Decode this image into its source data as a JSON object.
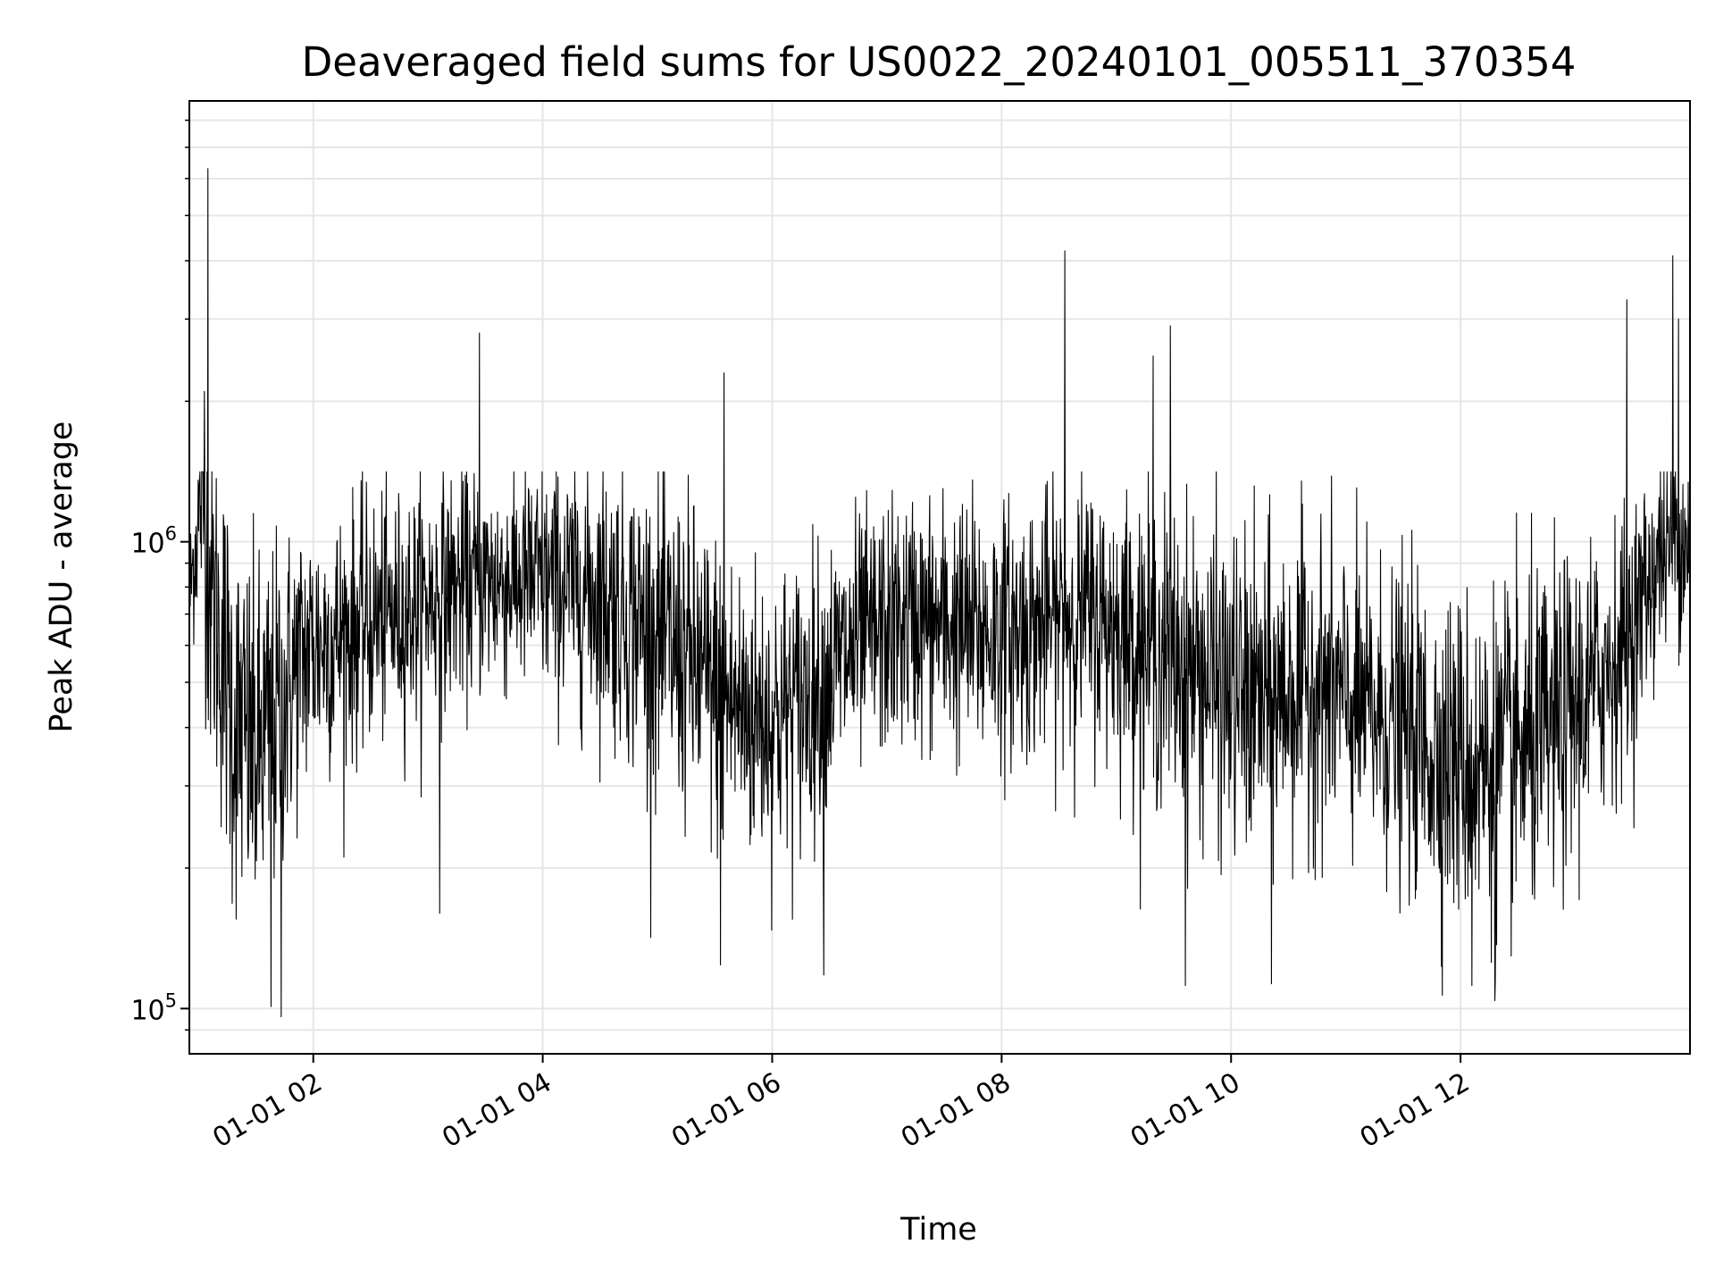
{
  "chart_data": {
    "type": "line",
    "title": "Deaveraged field sums for US0022_20240101_005511_370354",
    "xlabel": "Time",
    "ylabel": "Peak ADU - average",
    "x_ticks": [
      "01-01 02",
      "01-01 04",
      "01-01 06",
      "01-01 08",
      "01-01 10",
      "01-01 12"
    ],
    "x_tick_hours": [
      2,
      4,
      6,
      8,
      10,
      12
    ],
    "xlim_hours": [
      0.92,
      14.0
    ],
    "y_scale": "log",
    "ylim": [
      80000,
      8800000
    ],
    "y_major_ticks": [
      {
        "value": 100000,
        "base": "10",
        "exp": "5"
      },
      {
        "value": 1000000,
        "base": "10",
        "exp": "6"
      }
    ],
    "y_minor_ticks": [
      90000,
      200000,
      300000,
      400000,
      500000,
      600000,
      700000,
      800000,
      900000,
      2000000,
      3000000,
      4000000,
      5000000,
      6000000,
      7000000,
      8000000
    ],
    "grid": true,
    "line_color": "#000000",
    "series": [
      {
        "time_hours": [
          0.92,
          1.02,
          1.1,
          1.2,
          1.3,
          1.4,
          1.5,
          1.6,
          1.7,
          1.8,
          1.9,
          2.0,
          2.25,
          2.5,
          2.75,
          3.0,
          3.25,
          3.5,
          3.75,
          4.0,
          4.25,
          4.5,
          4.75,
          5.0,
          5.25,
          5.5,
          5.75,
          6.0,
          6.25,
          6.5,
          6.75,
          7.0,
          7.25,
          7.5,
          7.75,
          8.0,
          8.25,
          8.5,
          8.75,
          9.0,
          9.25,
          9.5,
          9.75,
          10.0,
          10.25,
          10.5,
          10.75,
          11.0,
          11.25,
          11.5,
          11.75,
          12.0,
          12.25,
          12.5,
          12.75,
          13.0,
          13.25,
          13.5,
          13.75,
          14.0
        ],
        "median": [
          750000,
          1200000,
          800000,
          600000,
          420000,
          380000,
          350000,
          380000,
          430000,
          500000,
          560000,
          600000,
          630000,
          680000,
          700000,
          750000,
          800000,
          820000,
          830000,
          820000,
          800000,
          780000,
          700000,
          620000,
          560000,
          480000,
          430000,
          420000,
          450000,
          520000,
          600000,
          650000,
          680000,
          660000,
          640000,
          640000,
          650000,
          690000,
          700000,
          660000,
          600000,
          560000,
          520000,
          470000,
          450000,
          480000,
          500000,
          450000,
          420000,
          400000,
          360000,
          340000,
          330000,
          350000,
          380000,
          440000,
          520000,
          650000,
          950000,
          1050000
        ],
        "noise_decades": [
          0.14,
          0.2,
          0.34,
          0.36,
          0.37,
          0.37,
          0.37,
          0.36,
          0.34,
          0.3,
          0.28,
          0.26,
          0.25,
          0.24,
          0.23,
          0.22,
          0.22,
          0.22,
          0.22,
          0.23,
          0.24,
          0.26,
          0.28,
          0.3,
          0.31,
          0.31,
          0.3,
          0.29,
          0.28,
          0.26,
          0.25,
          0.24,
          0.24,
          0.25,
          0.26,
          0.25,
          0.25,
          0.25,
          0.25,
          0.26,
          0.28,
          0.29,
          0.3,
          0.31,
          0.31,
          0.3,
          0.29,
          0.29,
          0.29,
          0.3,
          0.31,
          0.32,
          0.33,
          0.33,
          0.32,
          0.3,
          0.27,
          0.24,
          0.2,
          0.18
        ],
        "spikes": [
          {
            "t": 1.08,
            "v": 6300000
          },
          {
            "t": 1.05,
            "v": 2100000
          },
          {
            "t": 3.45,
            "v": 2800000
          },
          {
            "t": 5.58,
            "v": 2300000
          },
          {
            "t": 8.55,
            "v": 4200000
          },
          {
            "t": 9.32,
            "v": 2500000
          },
          {
            "t": 9.47,
            "v": 2900000
          },
          {
            "t": 13.45,
            "v": 3300000
          },
          {
            "t": 13.85,
            "v": 4100000
          },
          {
            "t": 13.9,
            "v": 3000000
          },
          {
            "t": 1.72,
            "v": 96000
          },
          {
            "t": 1.63,
            "v": 101000
          },
          {
            "t": 9.6,
            "v": 112000
          },
          {
            "t": 10.35,
            "v": 113000
          },
          {
            "t": 12.3,
            "v": 104000
          },
          {
            "t": 12.1,
            "v": 112000
          },
          {
            "t": 6.45,
            "v": 118000
          },
          {
            "t": 5.55,
            "v": 124000
          },
          {
            "t": 3.1,
            "v": 160000
          }
        ]
      }
    ]
  }
}
